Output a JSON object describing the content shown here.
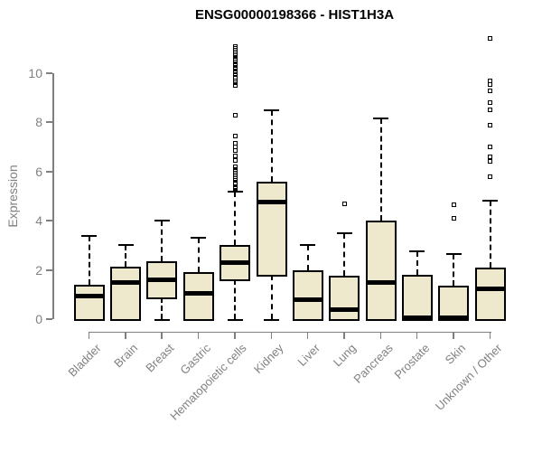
{
  "title": "ENSG00000198366 - HIST1H3A",
  "colors": {
    "box_fill": "#EEE8CD",
    "box_border": "#000000",
    "median": "#000000",
    "whisker": "#000000",
    "outlier": "#000000",
    "axis": "#808080",
    "tick_text": "#818181",
    "title_text": "#000000",
    "background": "#ffffff"
  },
  "chart_data": {
    "type": "boxplot",
    "title": "ENSG00000198366 - HIST1H3A",
    "xlabel": "",
    "ylabel": "Expression",
    "ylim": [
      0,
      11.5
    ],
    "yticks": [
      0,
      2,
      4,
      6,
      8,
      10
    ],
    "grid": false,
    "legend": "none",
    "categories": [
      "Bladder",
      "Brain",
      "Breast",
      "Gastric",
      "Hematopoietic cells",
      "Kidney",
      "Liver",
      "Lung",
      "Pancreas",
      "Prostate",
      "Skin",
      "Unknown / Other"
    ],
    "series": [
      {
        "name": "Bladder",
        "whisker_low": 0,
        "q1": 0,
        "median": 0.95,
        "q3": 1.4,
        "whisker_high": 3.4,
        "outliers": []
      },
      {
        "name": "Brain",
        "whisker_low": 0,
        "q1": 0,
        "median": 1.5,
        "q3": 2.15,
        "whisker_high": 3.0,
        "outliers": []
      },
      {
        "name": "Breast",
        "whisker_low": 0,
        "q1": 0.9,
        "median": 1.6,
        "q3": 2.35,
        "whisker_high": 4.0,
        "outliers": []
      },
      {
        "name": "Gastric",
        "whisker_low": 0,
        "q1": 0,
        "median": 1.05,
        "q3": 1.9,
        "whisker_high": 3.3,
        "outliers": []
      },
      {
        "name": "Hematopoietic cells",
        "whisker_low": 0,
        "q1": 1.6,
        "median": 2.3,
        "q3": 3.0,
        "whisker_high": 5.2,
        "outliers": [
          11.1,
          11.0,
          10.95,
          10.85,
          10.8,
          10.7,
          10.6,
          10.55,
          10.45,
          10.35,
          10.25,
          10.15,
          10.05,
          9.95,
          9.85,
          9.7,
          9.6,
          9.5,
          8.3,
          7.45,
          7.15,
          7.0,
          6.85,
          6.65,
          6.45,
          6.2,
          6.1,
          6.0,
          5.95,
          5.85,
          5.8,
          5.7,
          5.65,
          5.55,
          5.5,
          5.4,
          5.35,
          5.3
        ]
      },
      {
        "name": "Kidney",
        "whisker_low": 0,
        "q1": 1.8,
        "median": 4.75,
        "q3": 5.6,
        "whisker_high": 8.5,
        "outliers": []
      },
      {
        "name": "Liver",
        "whisker_low": 0,
        "q1": 0,
        "median": 0.8,
        "q3": 2.0,
        "whisker_high": 3.0,
        "outliers": []
      },
      {
        "name": "Lung",
        "whisker_low": 0,
        "q1": 0,
        "median": 0.4,
        "q3": 1.75,
        "whisker_high": 3.5,
        "outliers": [
          4.7
        ]
      },
      {
        "name": "Pancreas",
        "whisker_low": 0,
        "q1": 0,
        "median": 1.5,
        "q3": 4.0,
        "whisker_high": 8.15,
        "outliers": []
      },
      {
        "name": "Prostate",
        "whisker_low": 0,
        "q1": 0,
        "median": 0.05,
        "q3": 1.8,
        "whisker_high": 2.75,
        "outliers": []
      },
      {
        "name": "Skin",
        "whisker_low": 0,
        "q1": 0,
        "median": 0.05,
        "q3": 1.35,
        "whisker_high": 2.65,
        "outliers": [
          4.65,
          4.1
        ]
      },
      {
        "name": "Unknown / Other",
        "whisker_low": 0,
        "q1": 0,
        "median": 1.25,
        "q3": 2.1,
        "whisker_high": 4.8,
        "outliers": [
          11.4,
          9.7,
          9.55,
          9.3,
          8.8,
          8.5,
          7.9,
          7.0,
          6.6,
          6.4,
          5.8
        ]
      }
    ]
  }
}
